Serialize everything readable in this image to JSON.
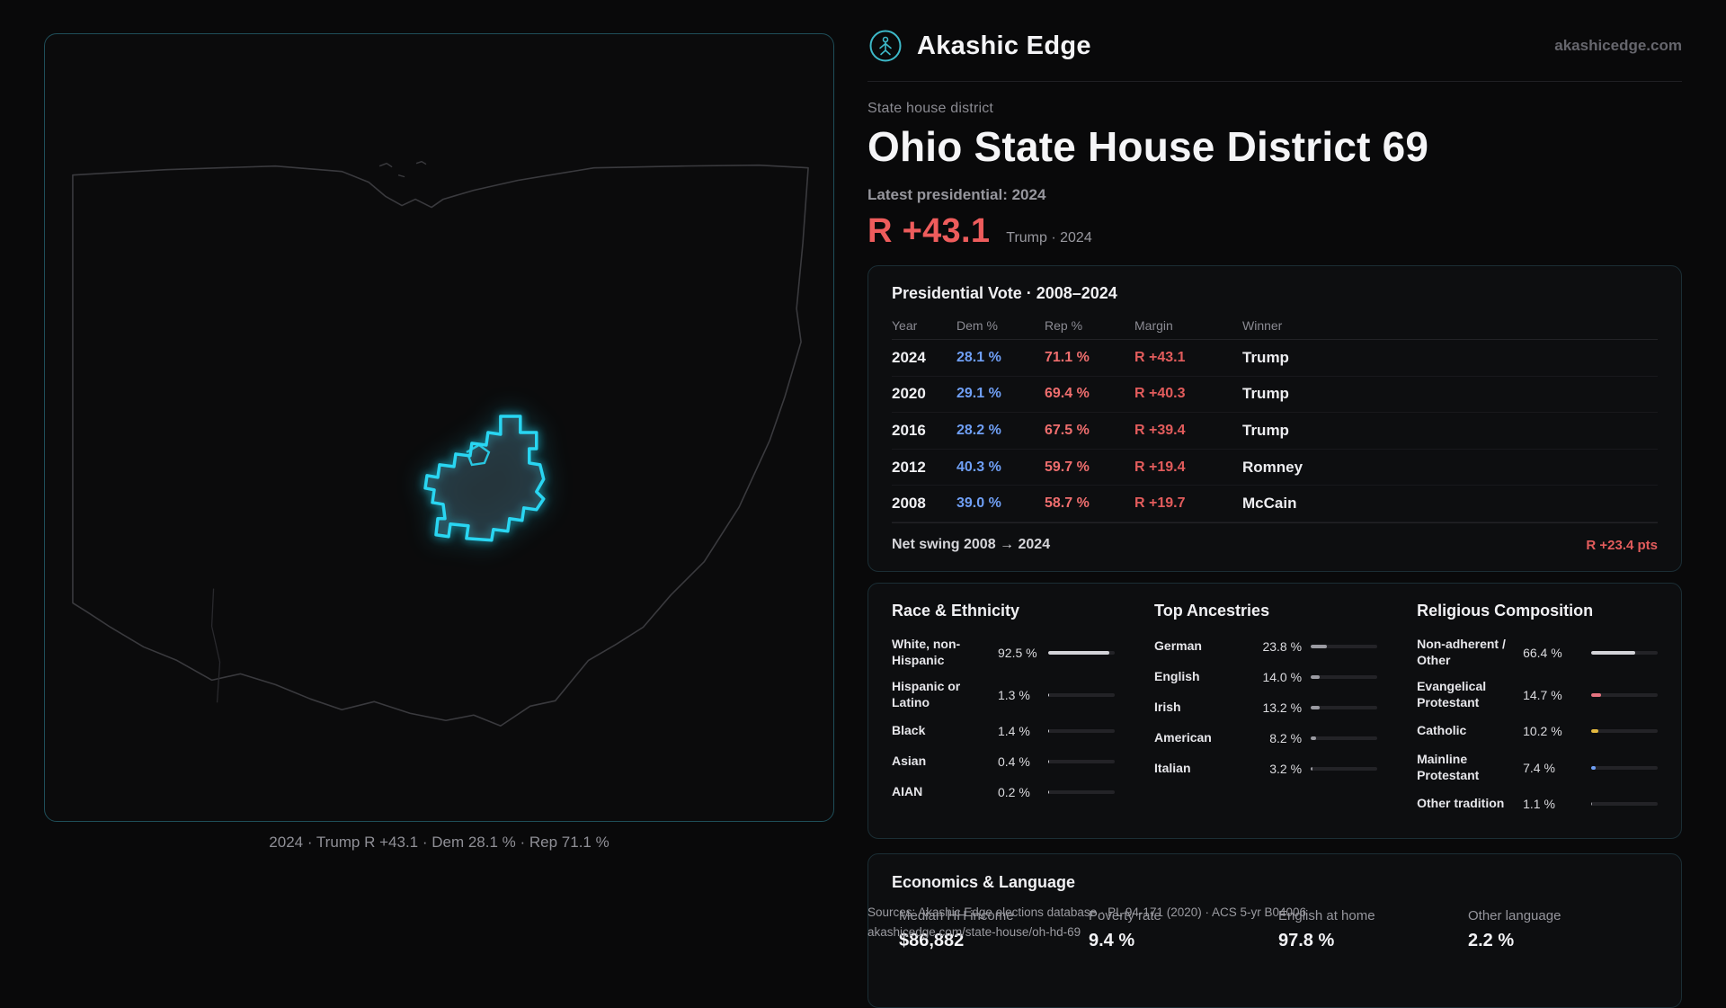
{
  "brand": {
    "name": "Akashic Edge",
    "domain": "akashicedge.com"
  },
  "page": {
    "kicker": "State house district",
    "title": "Ohio State House District 69",
    "latest_label": "Latest presidential: 2024",
    "headline_margin": "R +43.1",
    "headline_context": "Trump · 2024"
  },
  "map": {
    "caption": "2024 · Trump R +43.1 · Dem 28.1 % · Rep 71.1 %"
  },
  "presidential": {
    "title": "Presidential Vote · 2008–2024",
    "columns": [
      "Year",
      "Dem %",
      "Rep %",
      "Margin",
      "Winner"
    ],
    "rows": [
      {
        "year": "2024",
        "dem": "28.1 %",
        "rep": "71.1 %",
        "margin": "R +43.1",
        "winner": "Trump"
      },
      {
        "year": "2020",
        "dem": "29.1 %",
        "rep": "69.4 %",
        "margin": "R +40.3",
        "winner": "Trump"
      },
      {
        "year": "2016",
        "dem": "28.2 %",
        "rep": "67.5 %",
        "margin": "R +39.4",
        "winner": "Trump"
      },
      {
        "year": "2012",
        "dem": "40.3 %",
        "rep": "59.7 %",
        "margin": "R +19.4",
        "winner": "Romney"
      },
      {
        "year": "2008",
        "dem": "39.0 %",
        "rep": "58.7 %",
        "margin": "R +19.7",
        "winner": "McCain"
      }
    ],
    "net_swing_label": "Net swing 2008 → 2024",
    "net_swing_value": "R +23.4 pts"
  },
  "race": {
    "title": "Race & Ethnicity",
    "rows": [
      {
        "label": "White, non-Hispanic",
        "value": "92.5 %",
        "pct": 92.5
      },
      {
        "label": "Hispanic or Latino",
        "value": "1.3 %",
        "pct": 1.3
      },
      {
        "label": "Black",
        "value": "1.4 %",
        "pct": 1.4
      },
      {
        "label": "Asian",
        "value": "0.4 %",
        "pct": 0.4
      },
      {
        "label": "AIAN",
        "value": "0.2 %",
        "pct": 0.2
      }
    ]
  },
  "ancestries": {
    "title": "Top Ancestries",
    "rows": [
      {
        "label": "German",
        "value": "23.8 %",
        "pct": 23.8
      },
      {
        "label": "English",
        "value": "14.0 %",
        "pct": 14.0
      },
      {
        "label": "Irish",
        "value": "13.2 %",
        "pct": 13.2
      },
      {
        "label": "American",
        "value": "8.2 %",
        "pct": 8.2
      },
      {
        "label": "Italian",
        "value": "3.2 %",
        "pct": 3.2
      }
    ]
  },
  "religion": {
    "title": "Religious Composition",
    "rows": [
      {
        "label": "Non-adherent / Other",
        "value": "66.4 %",
        "pct": 66.4
      },
      {
        "label": "Evangelical Protestant",
        "value": "14.7 %",
        "pct": 14.7
      },
      {
        "label": "Catholic",
        "value": "10.2 %",
        "pct": 10.2
      },
      {
        "label": "Mainline Protestant",
        "value": "7.4 %",
        "pct": 7.4
      },
      {
        "label": "Other tradition",
        "value": "1.1 %",
        "pct": 1.1
      }
    ]
  },
  "economics": {
    "title": "Economics & Language",
    "stats": [
      {
        "label": "Median HH income",
        "value": "$86,882"
      },
      {
        "label": "Poverty rate",
        "value": "9.4 %"
      },
      {
        "label": "English at home",
        "value": "97.8 %"
      },
      {
        "label": "Other language",
        "value": "2.2 %"
      }
    ]
  },
  "footer": {
    "sources_line1": "Sources: Akashic Edge elections database · PL 94-171 (2020) · ACS 5-yr B04006",
    "sources_line2": "akashicedge.com/state-house/oh-hd-69"
  },
  "colors": {
    "accent_teal": "#29d6f2",
    "dem_blue": "#6f9ff5",
    "rep_red": "#ef6e6e",
    "margin_red": "#e25c5c",
    "headline_red": "#ee5c5c",
    "catholic_yellow": "#e3b93f",
    "evangelical_pink": "#e5737f",
    "mainline_blue": "#6f9ff5"
  }
}
